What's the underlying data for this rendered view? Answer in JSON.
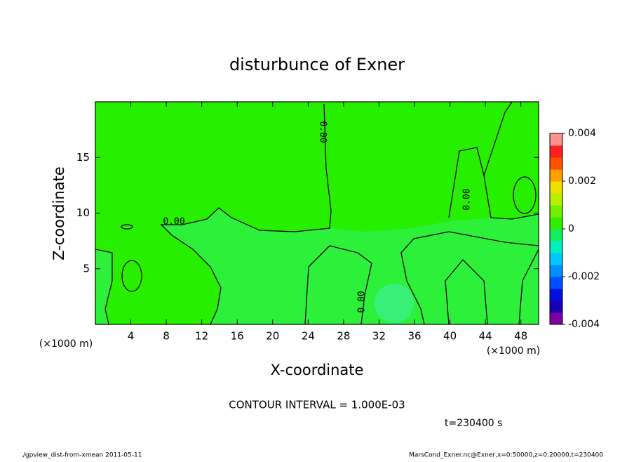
{
  "chart_data": {
    "type": "contour",
    "title": "disturbunce of Exner",
    "x_label": "X-coordinate",
    "y_label": "Z-coordinate",
    "x_unit_label": "(×1000 m)",
    "xlim": [
      0,
      50
    ],
    "xticks": [
      4,
      8,
      12,
      16,
      20,
      24,
      28,
      32,
      36,
      40,
      44,
      48
    ],
    "ylim": [
      0,
      20
    ],
    "yticks": [
      5,
      10,
      15
    ],
    "contour_labels": [
      "0.00",
      "0.00",
      "0.00",
      "0.00"
    ],
    "contour_interval": "CONTOUR INTERVAL = 1.000E-03",
    "time_label": "t=230400 s",
    "colorbar": {
      "lim": [
        -0.004,
        0.004
      ],
      "ticks": [
        -0.004,
        -0.002,
        0,
        0.002,
        0.004
      ],
      "colors": [
        "#7f00a0",
        "#1a00b0",
        "#0010e0",
        "#0050ff",
        "#0090ff",
        "#00c8ff",
        "#00f0c0",
        "#10f060",
        "#30f000",
        "#70f000",
        "#b8f000",
        "#f0e000",
        "#ffa000",
        "#ff5000",
        "#ff2020",
        "#ff9090"
      ]
    },
    "footer_left": "./gpview_dist-from-xmean  2011-05-11",
    "footer_right": "MarsCond_Exner.nc@Exner,x=0:50000,z=0:20000,t=230400"
  }
}
